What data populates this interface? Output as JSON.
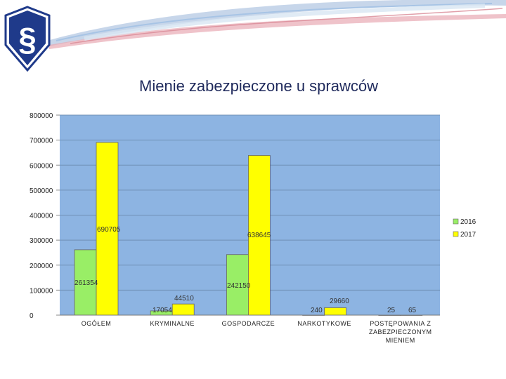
{
  "chart_data": {
    "type": "bar",
    "title": "Mienie zabezpieczone u sprawców",
    "categories": [
      "OGÓŁEM",
      "KRYMINALNE",
      "GOSPODARCZE",
      "NARKOTYKOWE",
      "POSTĘPOWANIA Z ZABEZPIECZONYM MIENIEM"
    ],
    "category_lines": [
      [
        "OGÓŁEM"
      ],
      [
        "KRYMINALNE"
      ],
      [
        "GOSPODARCZE"
      ],
      [
        "NARKOTYKOWE"
      ],
      [
        "POSTĘPOWANIA Z",
        "ZABEZPIECZONYM",
        "MIENIEM"
      ]
    ],
    "series": [
      {
        "name": "2016",
        "color": "#99ee66",
        "values": [
          261354,
          17054,
          242150,
          240,
          25
        ],
        "labels": [
          "261354",
          "17054",
          "242150",
          "240",
          "25"
        ]
      },
      {
        "name": "2017",
        "color": "#ffff00",
        "values": [
          690705,
          44510,
          638645,
          29660,
          65
        ],
        "labels": [
          "690705",
          "44510",
          "638645",
          "29660",
          "65"
        ]
      }
    ],
    "ylim": [
      0,
      800000
    ],
    "yticks": [
      "0",
      "100000",
      "200000",
      "300000",
      "400000",
      "500000",
      "600000",
      "700000",
      "800000"
    ],
    "grid": true,
    "legend": "right",
    "plot_background": "#8db4e2"
  },
  "logo": {
    "symbol": "§",
    "color": "#1f3a8a"
  }
}
